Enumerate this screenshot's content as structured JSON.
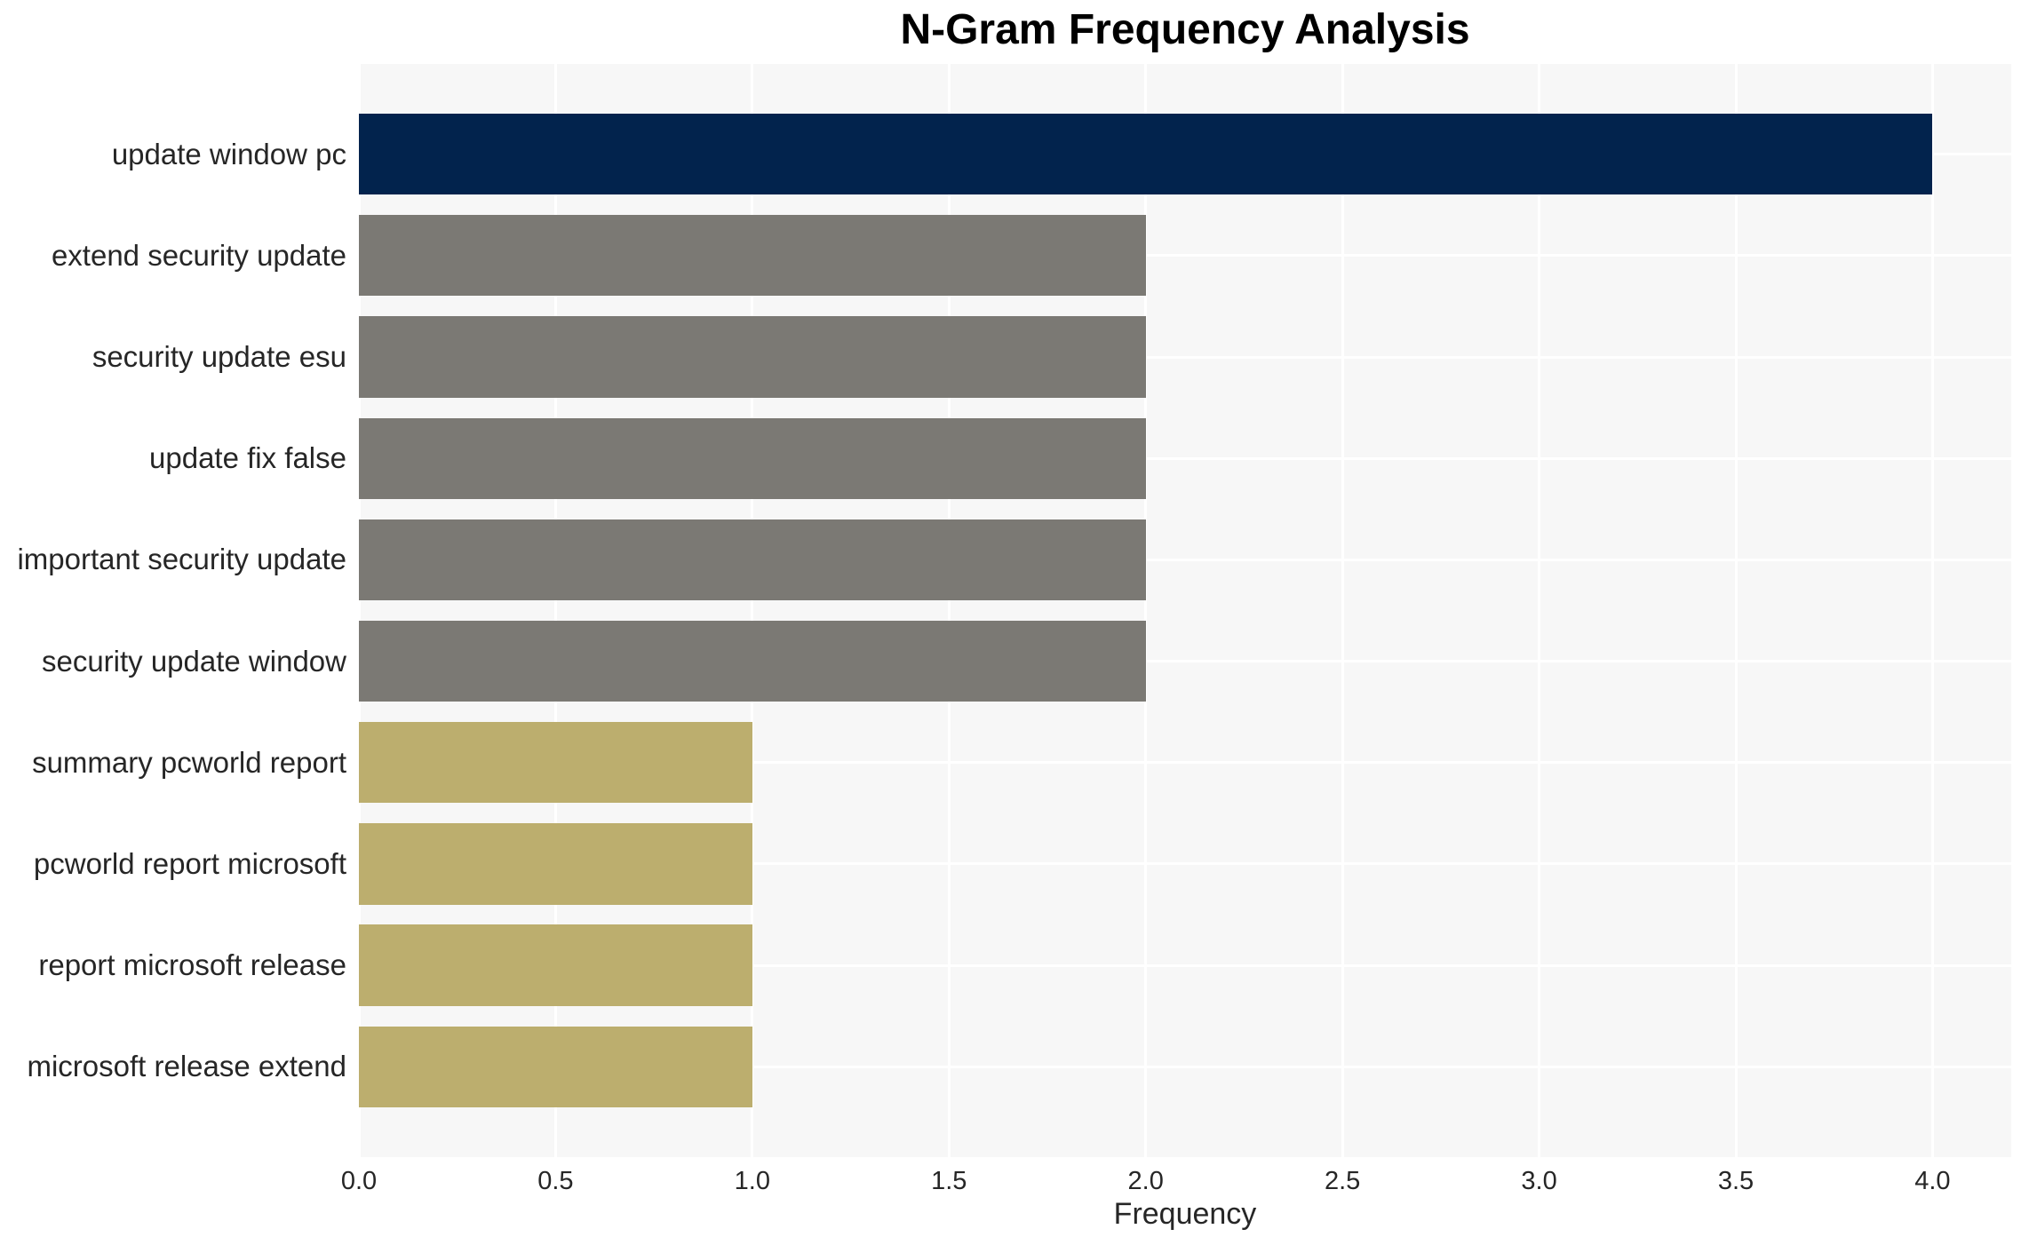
{
  "chart_data": {
    "type": "bar",
    "orientation": "horizontal",
    "title": "N-Gram Frequency Analysis",
    "xlabel": "Frequency",
    "ylabel": "",
    "categories": [
      "update window pc",
      "extend security update",
      "security update esu",
      "update fix false",
      "important security update",
      "security update window",
      "summary pcworld report",
      "pcworld report microsoft",
      "report microsoft release",
      "microsoft release extend"
    ],
    "values": [
      4,
      2,
      2,
      2,
      2,
      2,
      1,
      1,
      1,
      1
    ],
    "bar_colors": [
      "#02234d",
      "#7b7974",
      "#7b7974",
      "#7b7974",
      "#7b7974",
      "#7b7974",
      "#bcae6e",
      "#bcae6e",
      "#bcae6e",
      "#bcae6e"
    ],
    "xlim": [
      0,
      4.2
    ],
    "xticks": [
      "0.0",
      "0.5",
      "1.0",
      "1.5",
      "2.0",
      "2.5",
      "3.0",
      "3.5",
      "4.0"
    ],
    "grid": true,
    "legend_position": "none",
    "colors": {
      "figure_background": "#ffffff",
      "plot_background": "#f7f7f7",
      "gridline": "#ffffff",
      "text": "#262626",
      "title_text": "#000000"
    }
  }
}
